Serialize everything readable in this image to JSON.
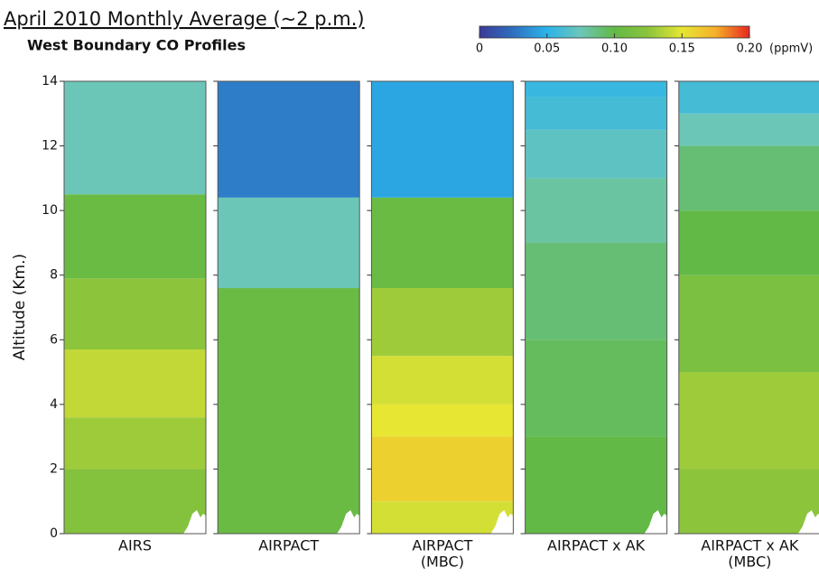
{
  "chart_data": {
    "type": "heatmap-panels",
    "title": "April 2010 Monthly Average (~2 p.m.)",
    "subtitle": "West Boundary CO Profiles",
    "y_label": "Altitude (Km.)",
    "ylim": [
      0,
      14
    ],
    "yticks": [
      0,
      2,
      4,
      6,
      8,
      10,
      12,
      14
    ],
    "colorbar_lim": [
      0,
      0.2
    ],
    "colorbar_ticks": [
      0,
      0.05,
      {
        "value": 0.1,
        "label": "0.10"
      },
      0.15,
      {
        "value": 0.2,
        "label": "0.20"
      }
    ],
    "colorbar_unit": "(ppmV)",
    "colormap": [
      "#3a3a96",
      "#2f6fc0",
      "#2bb4ea",
      "#6cc6b8",
      "#62b946",
      "#8cc43c",
      "#e6e633",
      "#f5b02a",
      "#e8261f"
    ],
    "panels": [
      {
        "label_lines": [
          "AIRS"
        ],
        "z_edges": [
          0,
          2,
          3.6,
          5.7,
          7.9,
          10.5,
          14
        ],
        "values": [
          0.12,
          0.13,
          0.14,
          0.125,
          0.105,
          0.075
        ]
      },
      {
        "label_lines": [
          "AIRPACT"
        ],
        "z_edges": [
          0,
          7.6,
          10.4,
          14
        ],
        "values": [
          0.105,
          0.075,
          0.03
        ]
      },
      {
        "label_lines": [
          "AIRPACT",
          "(MBC)"
        ],
        "z_edges": [
          0,
          1,
          3,
          4,
          5.5,
          7.6,
          10.4,
          14
        ],
        "values": [
          0.145,
          0.16,
          0.15,
          0.145,
          0.13,
          0.105,
          0.045
        ]
      },
      {
        "label_lines": [
          "AIRPACT x AK"
        ],
        "z_edges": [
          0,
          3,
          6,
          9,
          11,
          12.5,
          13.5,
          14
        ],
        "values": [
          0.1,
          0.095,
          0.09,
          0.08,
          0.07,
          0.06,
          0.055
        ]
      },
      {
        "label_lines": [
          "AIRPACT x AK",
          "(MBC)"
        ],
        "z_edges": [
          0,
          2,
          5,
          8,
          10,
          12,
          13,
          14
        ],
        "values": [
          0.125,
          0.13,
          0.115,
          0.1,
          0.09,
          0.075,
          0.06
        ]
      }
    ]
  }
}
